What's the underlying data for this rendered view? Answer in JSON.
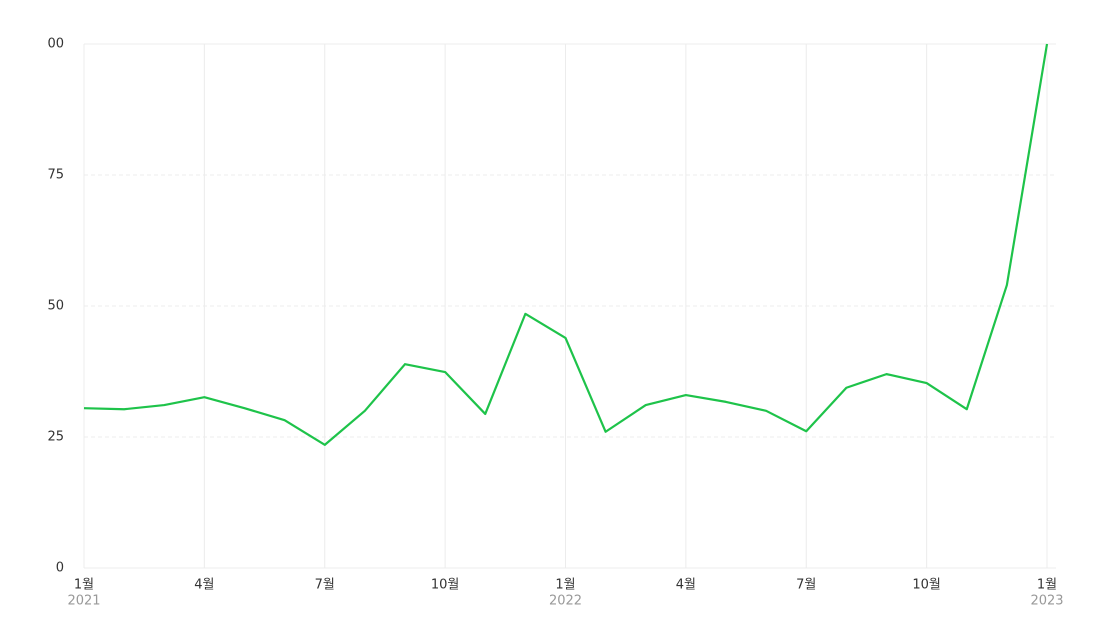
{
  "chart_data": {
    "type": "line",
    "categories": [
      "1월",
      null,
      null,
      "4월",
      null,
      null,
      "7월",
      null,
      null,
      "10월",
      null,
      null,
      "1월",
      null,
      null,
      "4월",
      null,
      null,
      "7월",
      null,
      null,
      "10월",
      null,
      null,
      "1월"
    ],
    "years": [
      "2021",
      null,
      null,
      null,
      null,
      null,
      null,
      null,
      null,
      null,
      null,
      null,
      "2022",
      null,
      null,
      null,
      null,
      null,
      null,
      null,
      null,
      null,
      null,
      null,
      "2023"
    ],
    "series": [
      {
        "color": "#1ec34a",
        "values": [
          30.5,
          30.3,
          31.1,
          32.6,
          30.5,
          28.2,
          23.5,
          30.0,
          38.9,
          37.4,
          29.4,
          48.5,
          43.9,
          26.0,
          31.1,
          33.0,
          31.7,
          30.0,
          26.1,
          34.4,
          37.0,
          35.3,
          30.3,
          54.0,
          100
        ]
      }
    ],
    "ylim": [
      0,
      100
    ],
    "yticks": [
      0,
      25,
      50,
      75,
      {
        "value": 100,
        "label": "00"
      }
    ],
    "grid": true
  }
}
